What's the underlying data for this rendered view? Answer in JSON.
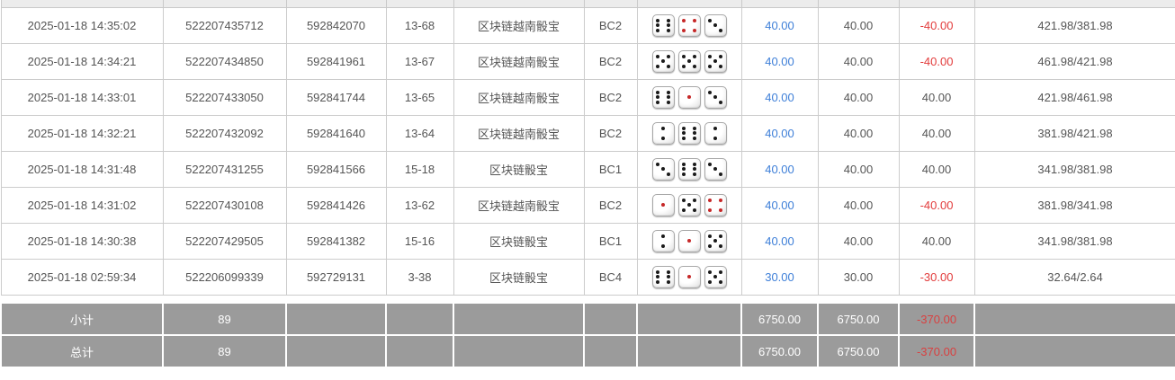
{
  "colors": {
    "link_blue": "#3e7fd8",
    "loss_red": "#e23b3b",
    "footer_gray": "#9b9b9b",
    "border_gray": "#cccccc"
  },
  "dice_style": {
    "red_pip_values": [
      1,
      4
    ]
  },
  "rows": [
    {
      "time": "2025-01-18 14:35:02",
      "bet_id": "522207435712",
      "round_id": "592842070",
      "period": "13-68",
      "game": "区块链越南骰宝",
      "table_code": "BC2",
      "dice": [
        6,
        4,
        3
      ],
      "bet": "40.00",
      "valid": "40.00",
      "result": "-40.00",
      "balance": "421.98/381.98"
    },
    {
      "time": "2025-01-18 14:34:21",
      "bet_id": "522207434850",
      "round_id": "592841961",
      "period": "13-67",
      "game": "区块链越南骰宝",
      "table_code": "BC2",
      "dice": [
        5,
        5,
        5
      ],
      "bet": "40.00",
      "valid": "40.00",
      "result": "-40.00",
      "balance": "461.98/421.98"
    },
    {
      "time": "2025-01-18 14:33:01",
      "bet_id": "522207433050",
      "round_id": "592841744",
      "period": "13-65",
      "game": "区块链越南骰宝",
      "table_code": "BC2",
      "dice": [
        6,
        1,
        3
      ],
      "bet": "40.00",
      "valid": "40.00",
      "result": "40.00",
      "balance": "421.98/461.98"
    },
    {
      "time": "2025-01-18 14:32:21",
      "bet_id": "522207432092",
      "round_id": "592841640",
      "period": "13-64",
      "game": "区块链越南骰宝",
      "table_code": "BC2",
      "dice": [
        2,
        6,
        2
      ],
      "bet": "40.00",
      "valid": "40.00",
      "result": "40.00",
      "balance": "381.98/421.98"
    },
    {
      "time": "2025-01-18 14:31:48",
      "bet_id": "522207431255",
      "round_id": "592841566",
      "period": "15-18",
      "game": "区块链骰宝",
      "table_code": "BC1",
      "dice": [
        3,
        6,
        3
      ],
      "bet": "40.00",
      "valid": "40.00",
      "result": "40.00",
      "balance": "341.98/381.98"
    },
    {
      "time": "2025-01-18 14:31:02",
      "bet_id": "522207430108",
      "round_id": "592841426",
      "period": "13-62",
      "game": "区块链越南骰宝",
      "table_code": "BC2",
      "dice": [
        1,
        5,
        4
      ],
      "bet": "40.00",
      "valid": "40.00",
      "result": "-40.00",
      "balance": "381.98/341.98"
    },
    {
      "time": "2025-01-18 14:30:38",
      "bet_id": "522207429505",
      "round_id": "592841382",
      "period": "15-16",
      "game": "区块链骰宝",
      "table_code": "BC1",
      "dice": [
        2,
        1,
        5
      ],
      "bet": "40.00",
      "valid": "40.00",
      "result": "40.00",
      "balance": "341.98/381.98"
    },
    {
      "time": "2025-01-18 02:59:34",
      "bet_id": "522206099339",
      "round_id": "592729131",
      "period": "3-38",
      "game": "区块链骰宝",
      "table_code": "BC4",
      "dice": [
        6,
        1,
        5
      ],
      "bet": "30.00",
      "valid": "30.00",
      "result": "-30.00",
      "balance": "32.64/2.64"
    }
  ],
  "footer_rows": [
    {
      "label": "小计",
      "count": "89",
      "bet_total": "6750.00",
      "valid_total": "6750.00",
      "result_total": "-370.00"
    },
    {
      "label": "总计",
      "count": "89",
      "bet_total": "6750.00",
      "valid_total": "6750.00",
      "result_total": "-370.00"
    }
  ]
}
